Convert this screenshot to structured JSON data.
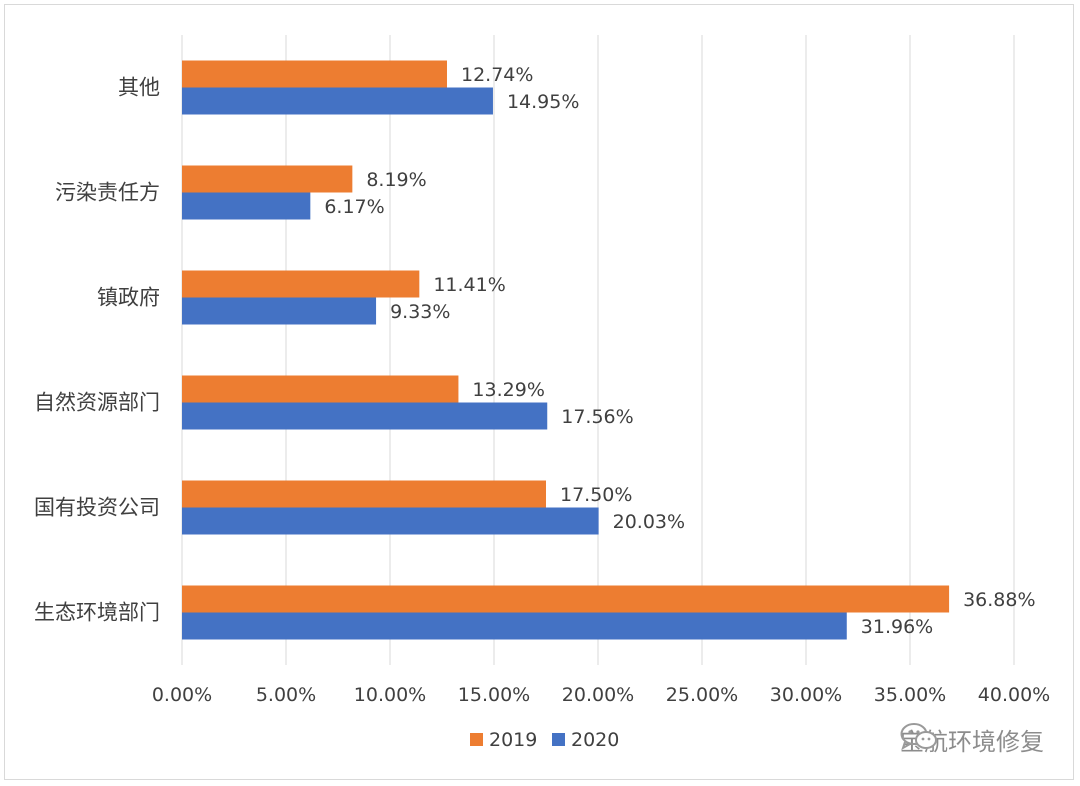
{
  "chart_data": {
    "type": "bar",
    "orientation": "horizontal",
    "categories": [
      "其他",
      "污染责任方",
      "镇政府",
      "自然资源部门",
      "国有投资公司",
      "生态环境部门"
    ],
    "series": [
      {
        "name": "2019",
        "color": "#ED7D31",
        "values": [
          12.74,
          8.19,
          11.41,
          13.29,
          17.5,
          36.88
        ],
        "labels": [
          "12.74%",
          "8.19%",
          "11.41%",
          "13.29%",
          "17.50%",
          "36.88%"
        ]
      },
      {
        "name": "2020",
        "color": "#4472C4",
        "values": [
          14.95,
          6.17,
          9.33,
          17.56,
          20.03,
          31.96
        ],
        "labels": [
          "14.95%",
          "6.17%",
          "9.33%",
          "17.56%",
          "20.03%",
          "31.96%"
        ]
      }
    ],
    "xlim": [
      0,
      40
    ],
    "xticks": [
      "0.00%",
      "5.00%",
      "10.00%",
      "15.00%",
      "20.00%",
      "25.00%",
      "30.00%",
      "35.00%",
      "40.00%"
    ],
    "grid": true,
    "legend": "bottom"
  },
  "watermark": {
    "text": "宝航环境修复",
    "icon": "wechat-icon"
  }
}
